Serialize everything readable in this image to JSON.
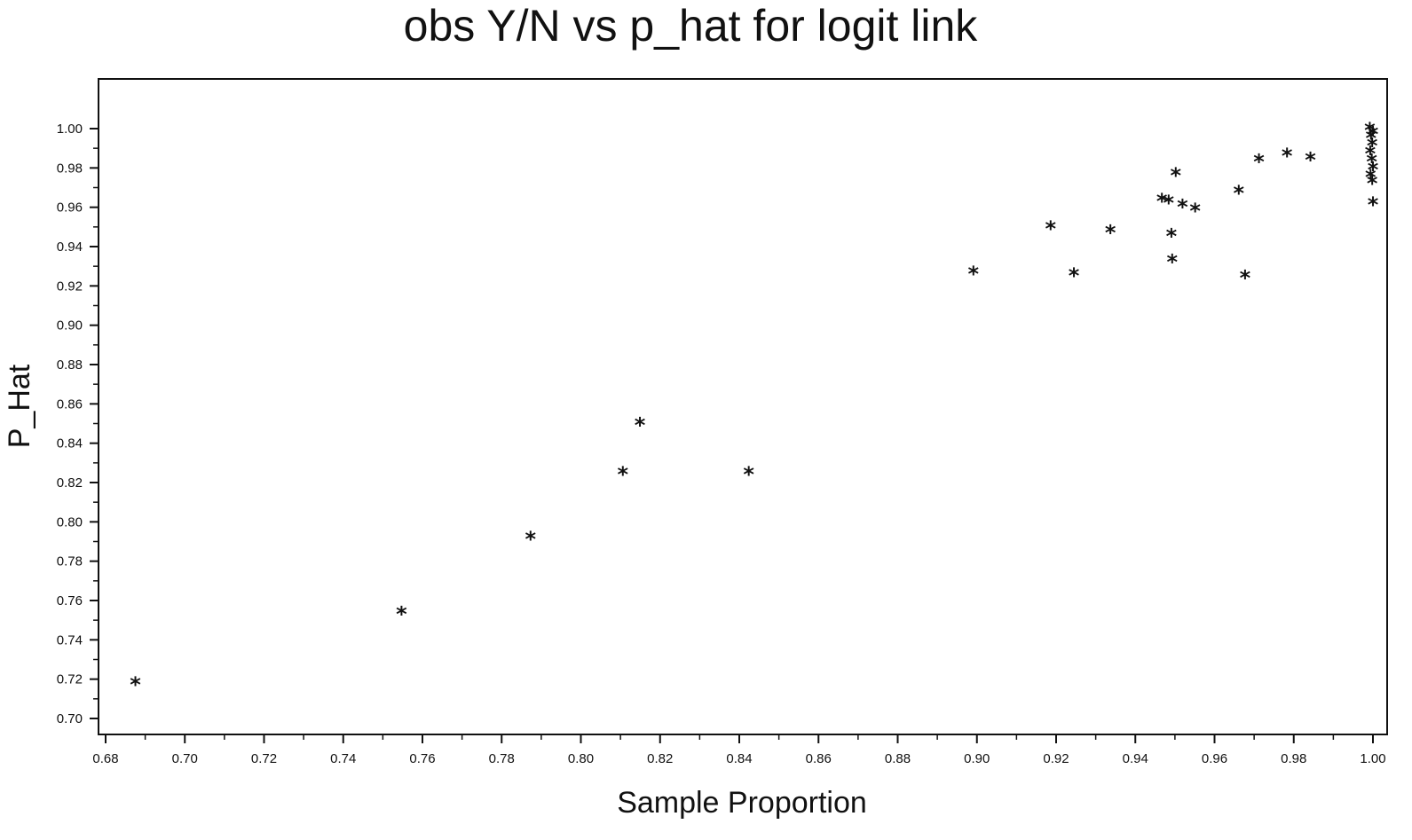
{
  "chart_data": {
    "type": "scatter",
    "title": "obs Y/N vs p_hat for logit link",
    "xlabel": "Sample Proportion",
    "ylabel": "P_Hat",
    "marker_symbol": "*",
    "color": "#111111",
    "xlim": [
      0.68,
      1.0
    ],
    "ylim": [
      0.7,
      1.0
    ],
    "xticks": [
      "0.68",
      "0.70",
      "0.72",
      "0.74",
      "0.76",
      "0.78",
      "0.80",
      "0.82",
      "0.84",
      "0.86",
      "0.88",
      "0.90",
      "0.92",
      "0.94",
      "0.96",
      "0.98",
      "1.00"
    ],
    "yticks": [
      "0.70",
      "0.72",
      "0.74",
      "0.76",
      "0.78",
      "0.80",
      "0.82",
      "0.84",
      "0.86",
      "0.88",
      "0.90",
      "0.92",
      "0.94",
      "0.96",
      "0.98",
      "1.00"
    ],
    "grid": false,
    "points": [
      {
        "x": 0.6875,
        "y": 0.718
      },
      {
        "x": 0.7547,
        "y": 0.754
      },
      {
        "x": 0.7873,
        "y": 0.792
      },
      {
        "x": 0.8106,
        "y": 0.825
      },
      {
        "x": 0.8149,
        "y": 0.85
      },
      {
        "x": 0.8424,
        "y": 0.825
      },
      {
        "x": 0.8991,
        "y": 0.927
      },
      {
        "x": 0.9186,
        "y": 0.95
      },
      {
        "x": 0.9245,
        "y": 0.926
      },
      {
        "x": 0.9337,
        "y": 0.948
      },
      {
        "x": 0.9467,
        "y": 0.964
      },
      {
        "x": 0.9484,
        "y": 0.963
      },
      {
        "x": 0.9491,
        "y": 0.946
      },
      {
        "x": 0.9493,
        "y": 0.933
      },
      {
        "x": 0.9502,
        "y": 0.977
      },
      {
        "x": 0.9519,
        "y": 0.961
      },
      {
        "x": 0.9551,
        "y": 0.959
      },
      {
        "x": 0.9661,
        "y": 0.968
      },
      {
        "x": 0.9677,
        "y": 0.925
      },
      {
        "x": 0.9712,
        "y": 0.984
      },
      {
        "x": 0.9783,
        "y": 0.987
      },
      {
        "x": 0.9842,
        "y": 0.985
      },
      {
        "x": 0.9992,
        "y": 1.0
      },
      {
        "x": 0.9995,
        "y": 0.996
      },
      {
        "x": 0.9998,
        "y": 0.992
      },
      {
        "x": 1.0,
        "y": 0.998
      },
      {
        "x": 0.9993,
        "y": 0.988
      },
      {
        "x": 0.9997,
        "y": 0.984
      },
      {
        "x": 1.0,
        "y": 0.98
      },
      {
        "x": 0.9994,
        "y": 0.976
      },
      {
        "x": 0.9998,
        "y": 0.973
      },
      {
        "x": 1.0,
        "y": 0.962
      }
    ]
  }
}
